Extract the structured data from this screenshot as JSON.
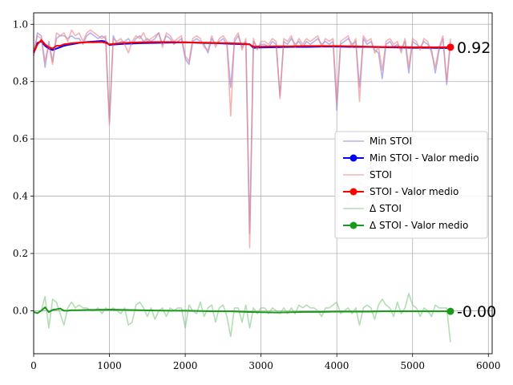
{
  "chart_data": {
    "type": "line",
    "xlim": [
      0,
      6050
    ],
    "ylim": [
      -0.15,
      1.04
    ],
    "x_ticks": [
      "0",
      "1000",
      "2000",
      "3000",
      "4000",
      "5000",
      "6000"
    ],
    "x_tick_values": [
      0,
      1000,
      2000,
      3000,
      4000,
      5000,
      6000
    ],
    "y_ticks": [
      "0.0",
      "0.2",
      "0.4",
      "0.6",
      "0.8",
      "1.0"
    ],
    "y_tick_values": [
      0.0,
      0.2,
      0.4,
      0.6,
      0.8,
      1.0
    ],
    "grid": true,
    "legend_placement": "center-right",
    "end_labels": [
      "0.92",
      "-0.00"
    ],
    "series": [
      {
        "name": "Min STOI",
        "color": "#8080e0",
        "style": "line-faint",
        "x": [
          0,
          50,
          100,
          150,
          200,
          250,
          300,
          350,
          400,
          450,
          500,
          550,
          600,
          650,
          700,
          750,
          800,
          850,
          900,
          950,
          1000,
          1050,
          1100,
          1150,
          1200,
          1250,
          1300,
          1350,
          1400,
          1450,
          1500,
          1550,
          1600,
          1650,
          1700,
          1750,
          1800,
          1850,
          1900,
          1950,
          2000,
          2050,
          2100,
          2150,
          2200,
          2250,
          2300,
          2350,
          2400,
          2450,
          2500,
          2550,
          2600,
          2650,
          2700,
          2750,
          2800,
          2850,
          2900,
          2950,
          3000,
          3050,
          3100,
          3150,
          3200,
          3250,
          3300,
          3350,
          3400,
          3450,
          3500,
          3550,
          3600,
          3650,
          3700,
          3750,
          3800,
          3850,
          3900,
          3950,
          4000,
          4050,
          4100,
          4150,
          4200,
          4250,
          4300,
          4350,
          4400,
          4450,
          4500,
          4550,
          4600,
          4650,
          4700,
          4750,
          4800,
          4850,
          4900,
          4950,
          5000,
          5050,
          5100,
          5150,
          5200,
          5250,
          5300,
          5350,
          5400,
          5450,
          5500
        ],
        "values": [
          0.89,
          0.97,
          0.96,
          0.85,
          0.94,
          0.87,
          0.95,
          0.96,
          0.96,
          0.95,
          0.96,
          0.95,
          0.95,
          0.93,
          0.96,
          0.97,
          0.96,
          0.95,
          0.96,
          0.95,
          0.66,
          0.96,
          0.93,
          0.94,
          0.94,
          0.95,
          0.93,
          0.95,
          0.96,
          0.94,
          0.95,
          0.94,
          0.95,
          0.97,
          0.93,
          0.96,
          0.95,
          0.93,
          0.94,
          0.95,
          0.88,
          0.86,
          0.94,
          0.95,
          0.94,
          0.93,
          0.9,
          0.95,
          0.93,
          0.94,
          0.95,
          0.93,
          0.78,
          0.94,
          0.96,
          0.92,
          0.94,
          0.27,
          0.94,
          0.92,
          0.93,
          0.93,
          0.92,
          0.94,
          0.93,
          0.75,
          0.94,
          0.93,
          0.95,
          0.93,
          0.94,
          0.92,
          0.94,
          0.93,
          0.94,
          0.95,
          0.93,
          0.94,
          0.93,
          0.94,
          0.7,
          0.93,
          0.94,
          0.95,
          0.93,
          0.94,
          0.78,
          0.95,
          0.93,
          0.94,
          0.91,
          0.9,
          0.81,
          0.93,
          0.94,
          0.92,
          0.93,
          0.91,
          0.94,
          0.83,
          0.94,
          0.93,
          0.92,
          0.94,
          0.93,
          0.91,
          0.83,
          0.91,
          0.95,
          0.79,
          0.94
        ]
      },
      {
        "name": "Min STOI - Valor medio",
        "color": "#0000ff",
        "style": "line-bold",
        "x": [
          0,
          50,
          100,
          150,
          200,
          250,
          300,
          350,
          400,
          450,
          500,
          600,
          700,
          800,
          900,
          950,
          1000,
          1100,
          1200,
          1400,
          1600,
          1800,
          2000,
          2200,
          2400,
          2600,
          2800,
          2850,
          2900,
          3000,
          3200,
          3400,
          3600,
          3800,
          4000,
          4200,
          4400,
          4600,
          4800,
          5000,
          5200,
          5400,
          5500
        ],
        "values": [
          0.905,
          0.935,
          0.94,
          0.925,
          0.915,
          0.91,
          0.915,
          0.92,
          0.925,
          0.928,
          0.93,
          0.935,
          0.938,
          0.94,
          0.942,
          0.94,
          0.928,
          0.93,
          0.932,
          0.934,
          0.935,
          0.936,
          0.937,
          0.935,
          0.934,
          0.932,
          0.93,
          0.93,
          0.918,
          0.919,
          0.92,
          0.921,
          0.921,
          0.922,
          0.922,
          0.921,
          0.921,
          0.92,
          0.919,
          0.918,
          0.918,
          0.917,
          0.917
        ]
      },
      {
        "name": "STOI",
        "color": "#f08080",
        "style": "line-faint",
        "x": [
          0,
          50,
          100,
          150,
          200,
          250,
          300,
          350,
          400,
          450,
          500,
          550,
          600,
          650,
          700,
          750,
          800,
          850,
          900,
          950,
          1000,
          1050,
          1100,
          1150,
          1200,
          1250,
          1300,
          1350,
          1400,
          1450,
          1500,
          1550,
          1600,
          1650,
          1700,
          1750,
          1800,
          1850,
          1900,
          1950,
          2000,
          2050,
          2100,
          2150,
          2200,
          2250,
          2300,
          2350,
          2400,
          2450,
          2500,
          2550,
          2600,
          2650,
          2700,
          2750,
          2800,
          2850,
          2900,
          2950,
          3000,
          3050,
          3100,
          3150,
          3200,
          3250,
          3300,
          3350,
          3400,
          3450,
          3500,
          3550,
          3600,
          3650,
          3700,
          3750,
          3800,
          3850,
          3900,
          3950,
          4000,
          4050,
          4100,
          4150,
          4200,
          4250,
          4300,
          4350,
          4400,
          4450,
          4500,
          4550,
          4600,
          4650,
          4700,
          4750,
          4800,
          4850,
          4900,
          4950,
          5000,
          5050,
          5100,
          5150,
          5200,
          5250,
          5300,
          5350,
          5400,
          5450,
          5500
        ],
        "values": [
          0.9,
          0.96,
          0.95,
          0.87,
          0.93,
          0.86,
          0.97,
          0.96,
          0.97,
          0.94,
          0.98,
          0.96,
          0.97,
          0.94,
          0.97,
          0.98,
          0.97,
          0.96,
          0.95,
          0.96,
          0.65,
          0.95,
          0.94,
          0.95,
          0.93,
          0.9,
          0.94,
          0.96,
          0.95,
          0.97,
          0.94,
          0.95,
          0.96,
          0.97,
          0.92,
          0.97,
          0.96,
          0.94,
          0.95,
          0.96,
          0.89,
          0.87,
          0.95,
          0.96,
          0.95,
          0.92,
          0.91,
          0.96,
          0.92,
          0.95,
          0.96,
          0.94,
          0.68,
          0.95,
          0.97,
          0.91,
          0.95,
          0.22,
          0.95,
          0.91,
          0.94,
          0.94,
          0.93,
          0.95,
          0.94,
          0.74,
          0.95,
          0.94,
          0.96,
          0.92,
          0.95,
          0.93,
          0.95,
          0.94,
          0.95,
          0.96,
          0.92,
          0.95,
          0.94,
          0.95,
          0.73,
          0.94,
          0.95,
          0.96,
          0.92,
          0.95,
          0.73,
          0.96,
          0.94,
          0.95,
          0.9,
          0.92,
          0.84,
          0.94,
          0.95,
          0.93,
          0.94,
          0.9,
          0.95,
          0.85,
          0.95,
          0.94,
          0.91,
          0.95,
          0.94,
          0.9,
          0.85,
          0.92,
          0.96,
          0.8,
          0.95
        ]
      },
      {
        "name": "STOI - Valor medio",
        "color": "#ff0000",
        "style": "line-bold",
        "x": [
          0,
          50,
          100,
          150,
          200,
          250,
          300,
          350,
          400,
          450,
          500,
          600,
          700,
          800,
          900,
          950,
          1000,
          1100,
          1200,
          1400,
          1600,
          1800,
          2000,
          2200,
          2400,
          2600,
          2800,
          2850,
          2900,
          3000,
          3200,
          3400,
          3600,
          3800,
          4000,
          4200,
          4400,
          4600,
          4800,
          5000,
          5200,
          5400,
          5500
        ],
        "values": [
          0.9,
          0.93,
          0.945,
          0.93,
          0.92,
          0.915,
          0.925,
          0.925,
          0.93,
          0.932,
          0.934,
          0.936,
          0.937,
          0.937,
          0.938,
          0.935,
          0.93,
          0.933,
          0.935,
          0.937,
          0.938,
          0.938,
          0.937,
          0.936,
          0.935,
          0.934,
          0.932,
          0.93,
          0.922,
          0.922,
          0.923,
          0.923,
          0.924,
          0.924,
          0.924,
          0.923,
          0.922,
          0.921,
          0.921,
          0.92,
          0.92,
          0.92,
          0.92
        ]
      },
      {
        "name": "Δ STOI",
        "color": "#80c880",
        "style": "line-faint",
        "x": [
          0,
          50,
          100,
          150,
          200,
          250,
          300,
          350,
          400,
          450,
          500,
          550,
          600,
          650,
          700,
          750,
          800,
          850,
          900,
          950,
          1000,
          1050,
          1100,
          1150,
          1200,
          1250,
          1300,
          1350,
          1400,
          1450,
          1500,
          1550,
          1600,
          1650,
          1700,
          1750,
          1800,
          1850,
          1900,
          1950,
          2000,
          2050,
          2100,
          2150,
          2200,
          2250,
          2300,
          2350,
          2400,
          2450,
          2500,
          2550,
          2600,
          2650,
          2700,
          2750,
          2800,
          2850,
          2900,
          2950,
          3000,
          3050,
          3100,
          3150,
          3200,
          3250,
          3300,
          3350,
          3400,
          3450,
          3500,
          3550,
          3600,
          3650,
          3700,
          3750,
          3800,
          3850,
          3900,
          3950,
          4000,
          4050,
          4100,
          4150,
          4200,
          4250,
          4300,
          4350,
          4400,
          4450,
          4500,
          4550,
          4600,
          4650,
          4700,
          4750,
          4800,
          4850,
          4900,
          4950,
          5000,
          5050,
          5100,
          5150,
          5200,
          5250,
          5300,
          5350,
          5400,
          5450,
          5500
        ],
        "values": [
          0.0,
          -0.01,
          0.0,
          0.05,
          -0.06,
          0.04,
          0.03,
          -0.01,
          -0.05,
          0.01,
          0.03,
          0.01,
          0.02,
          0.01,
          0.01,
          0.0,
          0.0,
          0.01,
          -0.01,
          0.01,
          0.0,
          0.01,
          0.0,
          -0.01,
          0.01,
          -0.05,
          -0.04,
          0.02,
          0.03,
          0.01,
          -0.02,
          0.01,
          -0.03,
          0.0,
          0.01,
          -0.02,
          0.01,
          0.0,
          0.01,
          0.01,
          -0.06,
          0.02,
          0.0,
          -0.01,
          0.03,
          -0.02,
          0.01,
          0.02,
          -0.04,
          0.01,
          0.02,
          -0.02,
          -0.09,
          0.01,
          0.01,
          -0.04,
          0.02,
          -0.06,
          0.01,
          -0.01,
          0.01,
          0.01,
          -0.01,
          0.01,
          0.0,
          -0.01,
          0.01,
          -0.01,
          0.01,
          -0.01,
          0.02,
          0.01,
          0.02,
          0.01,
          0.01,
          0.0,
          -0.02,
          0.01,
          0.01,
          0.02,
          0.03,
          -0.01,
          0.0,
          0.01,
          -0.01,
          0.01,
          -0.05,
          0.01,
          0.02,
          0.01,
          -0.03,
          0.02,
          0.04,
          0.02,
          0.01,
          -0.02,
          0.03,
          -0.01,
          0.01,
          0.06,
          0.02,
          0.01,
          -0.02,
          0.01,
          0.0,
          -0.02,
          0.02,
          0.01,
          0.01,
          0.01,
          -0.11
        ]
      },
      {
        "name": "Δ STOI - Valor medio",
        "color": "#1a9a1a",
        "style": "line-bold",
        "x": [
          0,
          50,
          100,
          150,
          200,
          250,
          300,
          350,
          400,
          450,
          500,
          600,
          700,
          800,
          1000,
          1200,
          1400,
          1600,
          1800,
          2000,
          2200,
          2400,
          2600,
          2800,
          3000,
          3200,
          3400,
          3600,
          3800,
          4000,
          4200,
          4400,
          4600,
          4800,
          5000,
          5200,
          5400,
          5500
        ],
        "values": [
          -0.005,
          -0.008,
          0.0,
          0.012,
          -0.005,
          0.003,
          0.005,
          0.008,
          0.0,
          0.0,
          0.002,
          0.002,
          0.003,
          0.003,
          0.004,
          0.003,
          0.002,
          0.001,
          0.0,
          0.0,
          -0.001,
          -0.002,
          -0.002,
          -0.004,
          -0.005,
          -0.006,
          -0.005,
          -0.004,
          -0.004,
          -0.003,
          -0.003,
          -0.003,
          -0.002,
          -0.002,
          -0.002,
          -0.002,
          -0.002,
          -0.002
        ]
      }
    ]
  }
}
